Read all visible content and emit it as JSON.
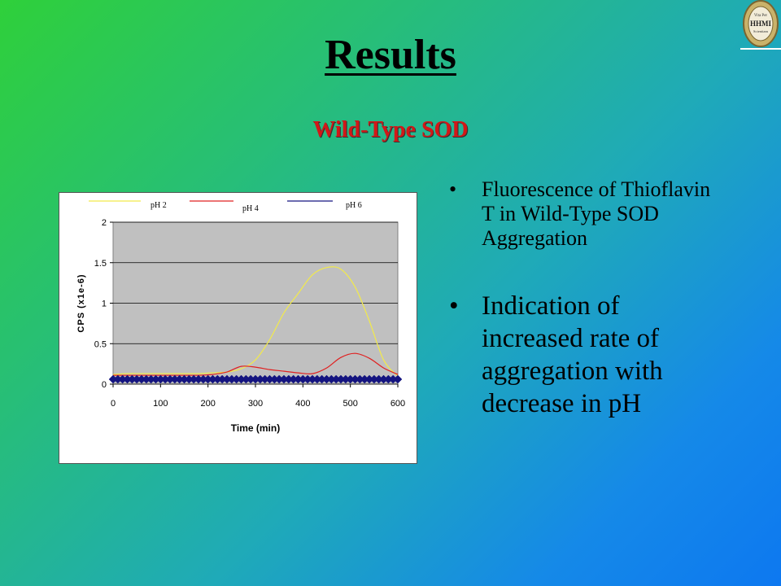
{
  "slide": {
    "title": "Results",
    "subtitle": "Wild-Type SOD",
    "logo_text": [
      "Vita Per",
      "HHMI",
      "Scientiam"
    ],
    "bullets": [
      "Fluorescence of Thioflavin T in Wild-Type SOD Aggregation",
      "Indication of increased rate of aggregation with decrease in pH"
    ],
    "bullet_glyph": "•"
  },
  "chart_data": {
    "type": "line",
    "xlabel": "Time (min)",
    "ylabel": "CPS (x1e-6)",
    "xlim": [
      0,
      600
    ],
    "ylim": [
      0,
      2
    ],
    "xticks": [
      0,
      100,
      200,
      300,
      400,
      500,
      600
    ],
    "yticks": [
      0,
      0.5,
      1,
      1.5,
      2
    ],
    "grid": "horizontal",
    "legend": "top",
    "background": "#c0c0c0",
    "x": [
      0,
      30,
      60,
      90,
      120,
      150,
      180,
      210,
      240,
      270,
      300,
      330,
      360,
      390,
      420,
      450,
      480,
      510,
      540,
      570,
      600
    ],
    "series": [
      {
        "name": "pH 2",
        "color": "#f2ea4a",
        "values": [
          0.12,
          0.13,
          0.13,
          0.13,
          0.13,
          0.13,
          0.13,
          0.14,
          0.15,
          0.19,
          0.3,
          0.55,
          0.88,
          1.12,
          1.35,
          1.44,
          1.42,
          1.2,
          0.78,
          0.3,
          0.1
        ]
      },
      {
        "name": "pH 4",
        "color": "#e02020",
        "values": [
          0.11,
          0.11,
          0.11,
          0.11,
          0.11,
          0.11,
          0.11,
          0.12,
          0.15,
          0.22,
          0.21,
          0.18,
          0.16,
          0.14,
          0.13,
          0.2,
          0.33,
          0.38,
          0.32,
          0.2,
          0.12
        ]
      },
      {
        "name": "pH 6",
        "color": "#141480",
        "values": [
          0.06,
          0.06,
          0.06,
          0.06,
          0.06,
          0.06,
          0.06,
          0.06,
          0.06,
          0.06,
          0.06,
          0.06,
          0.06,
          0.06,
          0.06,
          0.06,
          0.06,
          0.06,
          0.06,
          0.06,
          0.06
        ]
      }
    ]
  }
}
